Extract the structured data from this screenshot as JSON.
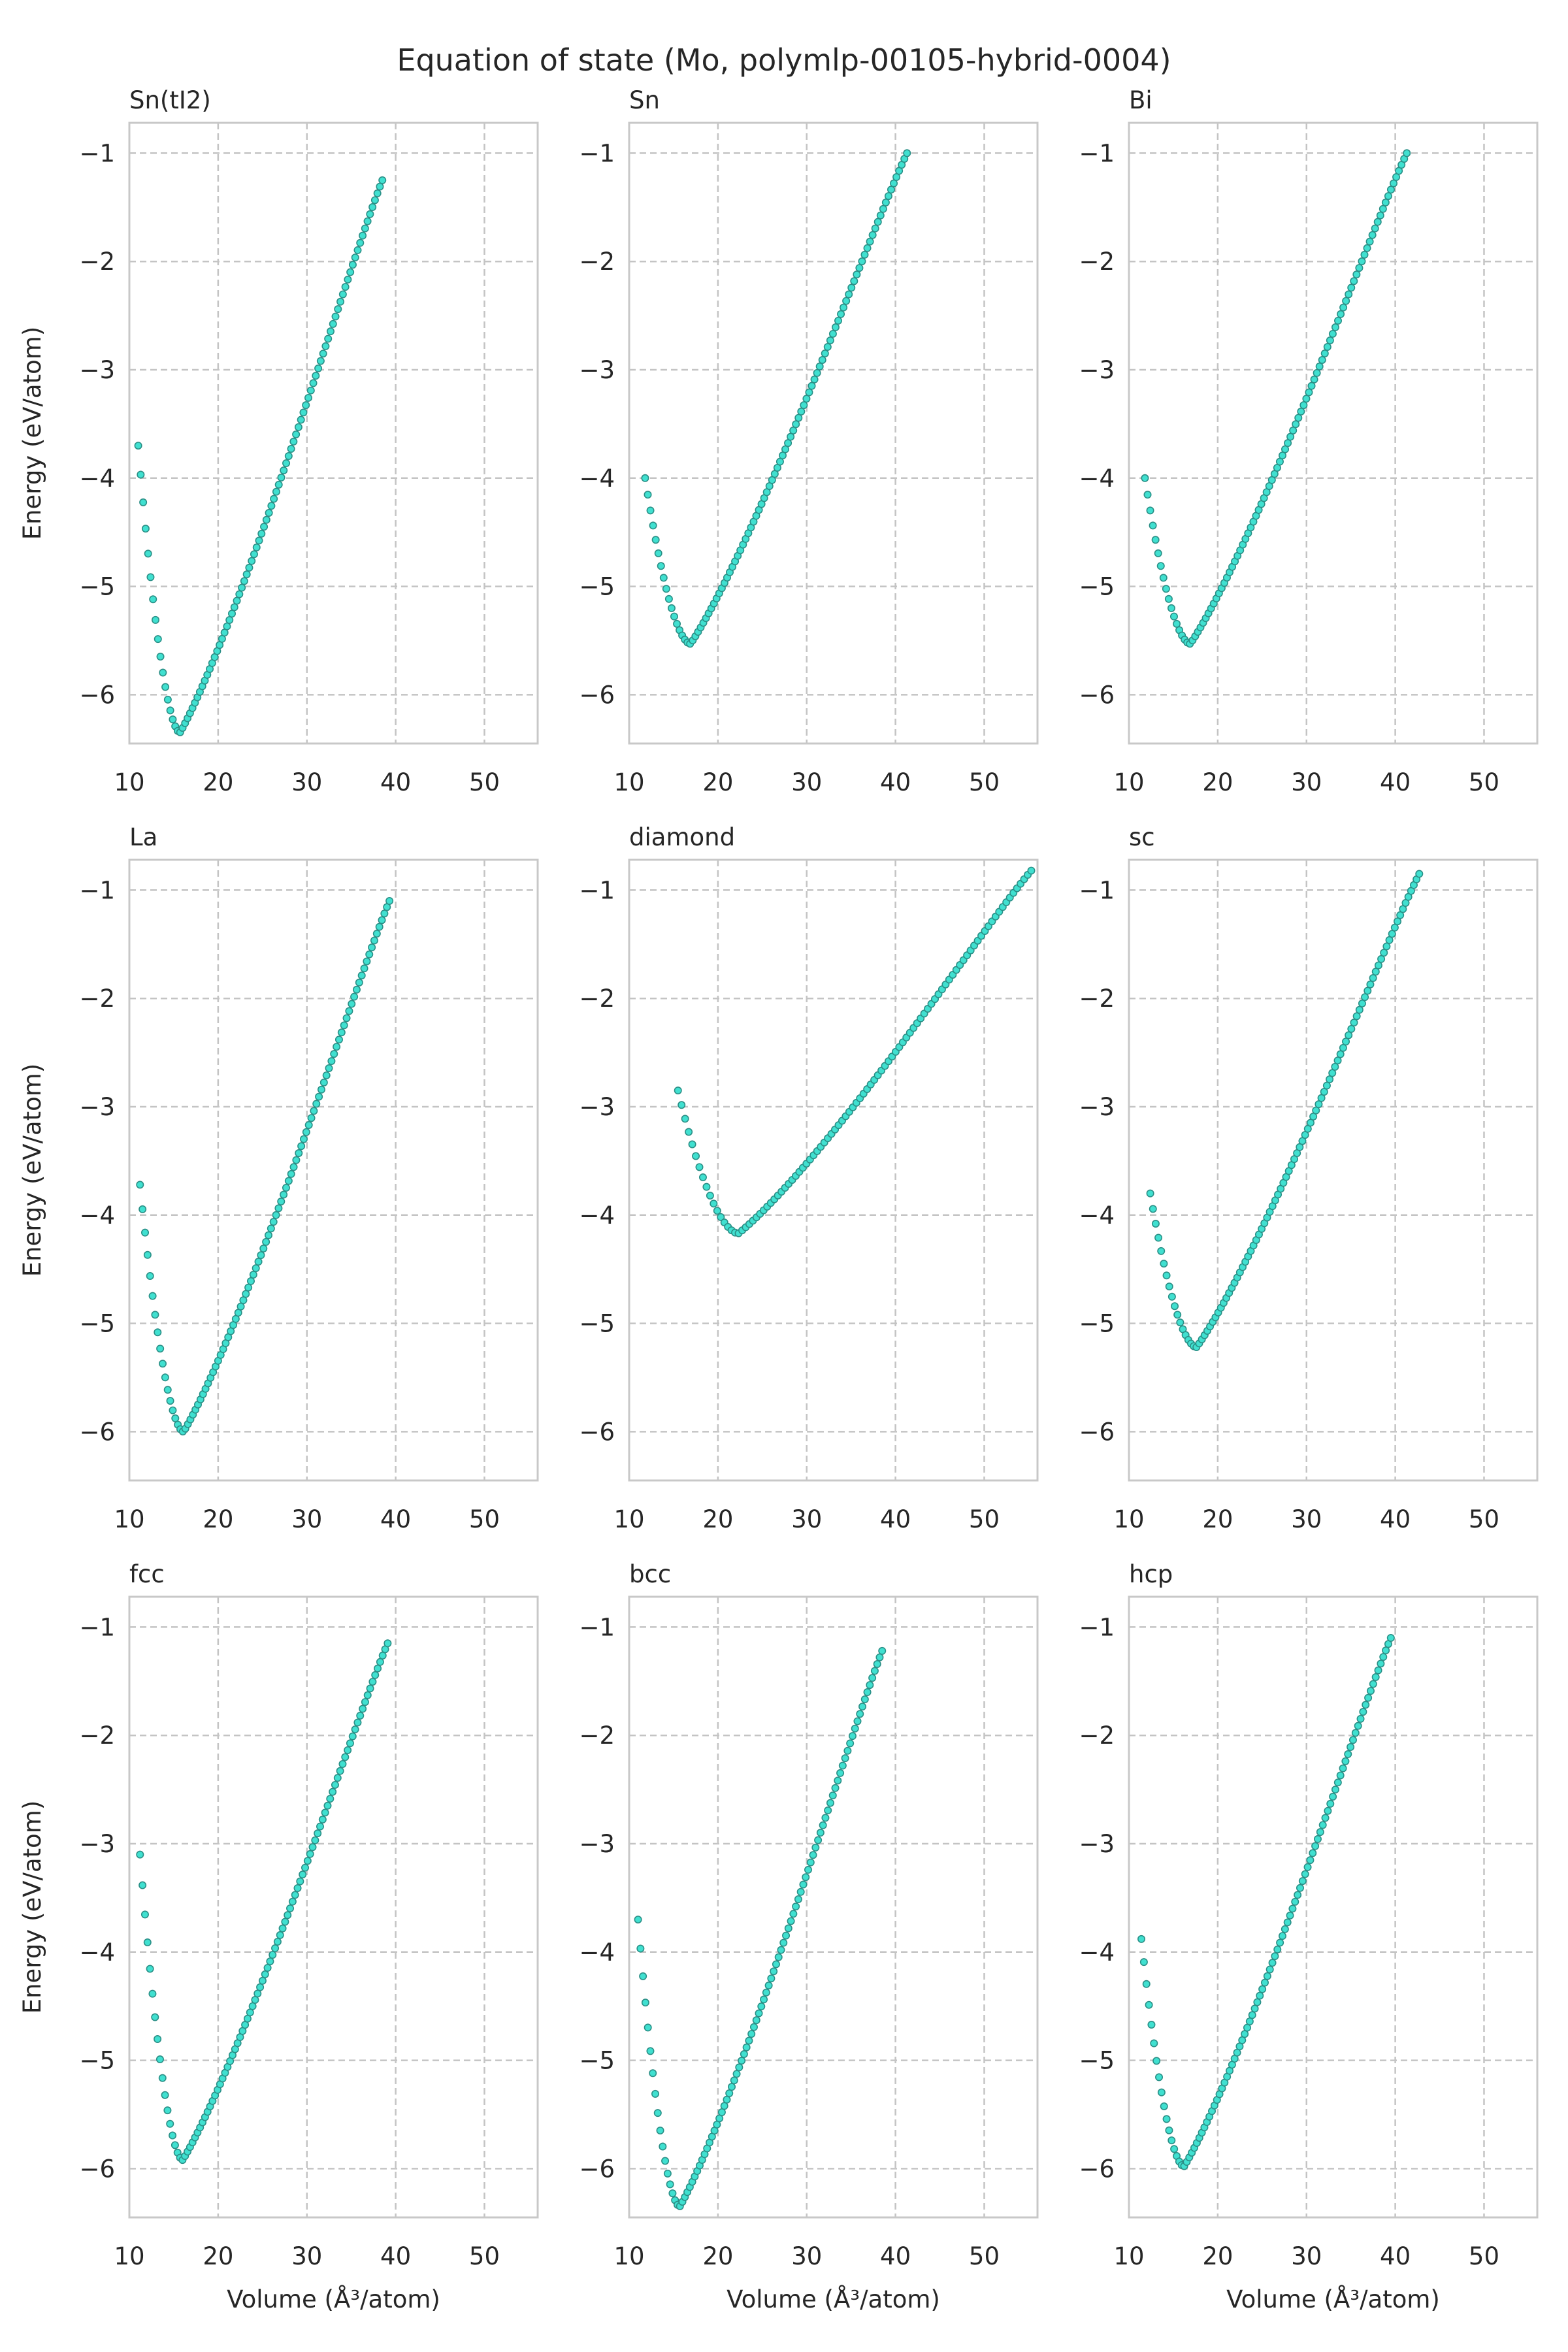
{
  "figure": {
    "title": "Equation of state (Mo, polymlp-00105-hybrid-0004)",
    "marker_color": "#40E0D0",
    "marker_edge_color": "#2a8f86"
  },
  "chart_data": [
    {
      "type": "scatter",
      "title": "Sn(tI2)",
      "xlabel": "",
      "ylabel": "Energy (eV/atom)",
      "xlim": [
        10,
        56
      ],
      "ylim": [
        -6.45,
        -0.72
      ],
      "xticks": [
        "10",
        "20",
        "30",
        "40",
        "50"
      ],
      "yticks": [
        "−1",
        "−2",
        "−3",
        "−4",
        "−5",
        "−6"
      ],
      "grid": true,
      "curve": {
        "v_start": 11.0,
        "v_end": 38.5,
        "v_min": 15.7,
        "e_min": -6.35,
        "e_start": -3.7,
        "e_end": -1.25,
        "n": 100
      }
    },
    {
      "type": "scatter",
      "title": "Sn",
      "xlabel": "",
      "ylabel": "",
      "xlim": [
        10,
        56
      ],
      "ylim": [
        -6.45,
        -0.72
      ],
      "xticks": [
        "10",
        "20",
        "30",
        "40",
        "50"
      ],
      "yticks": [
        "−1",
        "−2",
        "−3",
        "−4",
        "−5",
        "−6"
      ],
      "grid": true,
      "curve": {
        "v_start": 11.8,
        "v_end": 41.3,
        "v_min": 16.9,
        "e_min": -5.53,
        "e_start": -4.0,
        "e_end": -1.0,
        "n": 100
      }
    },
    {
      "type": "scatter",
      "title": "Bi",
      "xlabel": "",
      "ylabel": "",
      "xlim": [
        10,
        56
      ],
      "ylim": [
        -6.45,
        -0.72
      ],
      "xticks": [
        "10",
        "20",
        "30",
        "40",
        "50"
      ],
      "yticks": [
        "−1",
        "−2",
        "−3",
        "−4",
        "−5",
        "−6"
      ],
      "grid": true,
      "curve": {
        "v_start": 11.8,
        "v_end": 41.3,
        "v_min": 16.9,
        "e_min": -5.53,
        "e_start": -4.0,
        "e_end": -1.0,
        "n": 100
      }
    },
    {
      "type": "scatter",
      "title": "La",
      "xlabel": "",
      "ylabel": "Energy (eV/atom)",
      "xlim": [
        10,
        56
      ],
      "ylim": [
        -6.45,
        -0.72
      ],
      "xticks": [
        "10",
        "20",
        "30",
        "40",
        "50"
      ],
      "yticks": [
        "−1",
        "−2",
        "−3",
        "−4",
        "−5",
        "−6"
      ],
      "grid": true,
      "curve": {
        "v_start": 11.2,
        "v_end": 39.3,
        "v_min": 16.1,
        "e_min": -6.0,
        "e_start": -3.72,
        "e_end": -1.1,
        "n": 100
      }
    },
    {
      "type": "scatter",
      "title": "diamond",
      "xlabel": "",
      "ylabel": "",
      "xlim": [
        10,
        56
      ],
      "ylim": [
        -6.45,
        -0.72
      ],
      "xticks": [
        "10",
        "20",
        "30",
        "40",
        "50"
      ],
      "yticks": [
        "−1",
        "−2",
        "−3",
        "−4",
        "−5",
        "−6"
      ],
      "grid": true,
      "curve": {
        "v_start": 15.5,
        "v_end": 55.3,
        "v_min": 22.3,
        "e_min": -4.17,
        "e_start": -2.85,
        "e_end": -0.82,
        "n": 100
      }
    },
    {
      "type": "scatter",
      "title": "sc",
      "xlabel": "",
      "ylabel": "",
      "xlim": [
        10,
        56
      ],
      "ylim": [
        -6.45,
        -0.72
      ],
      "xticks": [
        "10",
        "20",
        "30",
        "40",
        "50"
      ],
      "yticks": [
        "−1",
        "−2",
        "−3",
        "−4",
        "−5",
        "−6"
      ],
      "grid": true,
      "curve": {
        "v_start": 12.4,
        "v_end": 42.7,
        "v_min": 17.6,
        "e_min": -5.22,
        "e_start": -3.8,
        "e_end": -0.85,
        "n": 100
      }
    },
    {
      "type": "scatter",
      "title": "fcc",
      "xlabel": "Volume (Å³/atom)",
      "ylabel": "Energy (eV/atom)",
      "xlim": [
        10,
        56
      ],
      "ylim": [
        -6.45,
        -0.72
      ],
      "xticks": [
        "10",
        "20",
        "30",
        "40",
        "50"
      ],
      "yticks": [
        "−1",
        "−2",
        "−3",
        "−4",
        "−5",
        "−6"
      ],
      "grid": true,
      "curve": {
        "v_start": 11.2,
        "v_end": 39.1,
        "v_min": 16.0,
        "e_min": -5.92,
        "e_start": -3.1,
        "e_end": -1.15,
        "n": 100
      }
    },
    {
      "type": "scatter",
      "title": "bcc",
      "xlabel": "Volume (Å³/atom)",
      "ylabel": "",
      "xlim": [
        10,
        56
      ],
      "ylim": [
        -6.45,
        -0.72
      ],
      "xticks": [
        "10",
        "20",
        "30",
        "40",
        "50"
      ],
      "yticks": [
        "−1",
        "−2",
        "−3",
        "−4",
        "−5",
        "−6"
      ],
      "grid": true,
      "curve": {
        "v_start": 11.0,
        "v_end": 38.5,
        "v_min": 15.7,
        "e_min": -6.35,
        "e_start": -3.7,
        "e_end": -1.22,
        "n": 100
      }
    },
    {
      "type": "scatter",
      "title": "hcp",
      "xlabel": "Volume (Å³/atom)",
      "ylabel": "",
      "xlim": [
        10,
        56
      ],
      "ylim": [
        -6.45,
        -0.72
      ],
      "xticks": [
        "10",
        "20",
        "30",
        "40",
        "50"
      ],
      "yticks": [
        "−1",
        "−2",
        "−3",
        "−4",
        "−5",
        "−6"
      ],
      "grid": true,
      "curve": {
        "v_start": 11.4,
        "v_end": 39.5,
        "v_min": 16.2,
        "e_min": -5.98,
        "e_start": -3.88,
        "e_end": -1.1,
        "n": 100
      }
    }
  ]
}
